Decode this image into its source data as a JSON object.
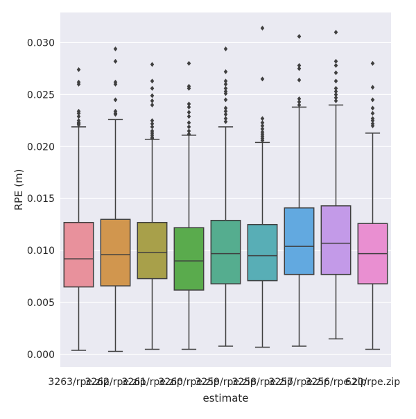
{
  "chart_data": {
    "type": "box",
    "xlabel": "estimate",
    "ylabel": "RPE (m)",
    "ylim": [
      -0.0012,
      0.0329
    ],
    "yticks": [
      0.0,
      0.005,
      0.01,
      0.015,
      0.02,
      0.025,
      0.03
    ],
    "ytick_labels": [
      "0.000",
      "0.005",
      "0.010",
      "0.015",
      "0.020",
      "0.025",
      "0.030"
    ],
    "grid": true,
    "background": "#eaeaf2",
    "categories": [
      "3263/rpe.zip",
      "3262/rpe.zip",
      "3261/rpe.zip",
      "3260/rpe.zip",
      "3259/rpe.zip",
      "3258/rpe.zip",
      "3257/rpe.zip",
      "3256/rpe.zip",
      "620/rpe.zip"
    ],
    "colors": [
      "#e8919c",
      "#d1964e",
      "#a8a04a",
      "#5aab4d",
      "#55ad8f",
      "#58aeb6",
      "#62a9e0",
      "#c39ae8",
      "#e98fd1"
    ],
    "boxes": [
      {
        "whislo": 0.0004,
        "q1": 0.0065,
        "med": 0.0092,
        "q3": 0.0127,
        "whishi": 0.0219,
        "fliers": [
          0.0221,
          0.0222,
          0.0223,
          0.0225,
          0.0229,
          0.0232,
          0.0234,
          0.026,
          0.0262,
          0.0274
        ]
      },
      {
        "whislo": 0.0003,
        "q1": 0.0066,
        "med": 0.0096,
        "q3": 0.013,
        "whishi": 0.0226,
        "fliers": [
          0.0231,
          0.0232,
          0.0234,
          0.0245,
          0.026,
          0.0262,
          0.0282,
          0.0294
        ]
      },
      {
        "whislo": 0.0005,
        "q1": 0.0073,
        "med": 0.0098,
        "q3": 0.0127,
        "whishi": 0.0207,
        "fliers": [
          0.0208,
          0.0209,
          0.0211,
          0.0213,
          0.0215,
          0.0219,
          0.0222,
          0.0225,
          0.024,
          0.0244,
          0.0249,
          0.0256,
          0.0263,
          0.0279
        ]
      },
      {
        "whislo": 0.0005,
        "q1": 0.0062,
        "med": 0.009,
        "q3": 0.0122,
        "whishi": 0.0211,
        "fliers": [
          0.0212,
          0.0215,
          0.0219,
          0.0223,
          0.0229,
          0.0233,
          0.0238,
          0.0241,
          0.0256,
          0.0258,
          0.028
        ]
      },
      {
        "whislo": 0.0008,
        "q1": 0.0068,
        "med": 0.0097,
        "q3": 0.0129,
        "whishi": 0.0219,
        "fliers": [
          0.0224,
          0.0227,
          0.0231,
          0.0234,
          0.0237,
          0.0245,
          0.0251,
          0.0253,
          0.0256,
          0.026,
          0.0263,
          0.0272,
          0.0294
        ]
      },
      {
        "whislo": 0.0007,
        "q1": 0.0071,
        "med": 0.0095,
        "q3": 0.0125,
        "whishi": 0.0204,
        "fliers": [
          0.0206,
          0.0208,
          0.021,
          0.0212,
          0.0214,
          0.0217,
          0.022,
          0.0223,
          0.0227,
          0.0265,
          0.0314
        ]
      },
      {
        "whislo": 0.0008,
        "q1": 0.0077,
        "med": 0.0104,
        "q3": 0.0141,
        "whishi": 0.0238,
        "fliers": [
          0.024,
          0.0243,
          0.0246,
          0.0264,
          0.0275,
          0.0278,
          0.0306
        ]
      },
      {
        "whislo": 0.0015,
        "q1": 0.0077,
        "med": 0.0107,
        "q3": 0.0143,
        "whishi": 0.024,
        "fliers": [
          0.0244,
          0.0247,
          0.025,
          0.0253,
          0.0256,
          0.0263,
          0.0271,
          0.0278,
          0.0282,
          0.031
        ]
      },
      {
        "whislo": 0.0005,
        "q1": 0.0068,
        "med": 0.0097,
        "q3": 0.0126,
        "whishi": 0.0213,
        "fliers": [
          0.022,
          0.0222,
          0.0225,
          0.0227,
          0.0232,
          0.0237,
          0.0245,
          0.0257,
          0.028
        ]
      }
    ]
  }
}
